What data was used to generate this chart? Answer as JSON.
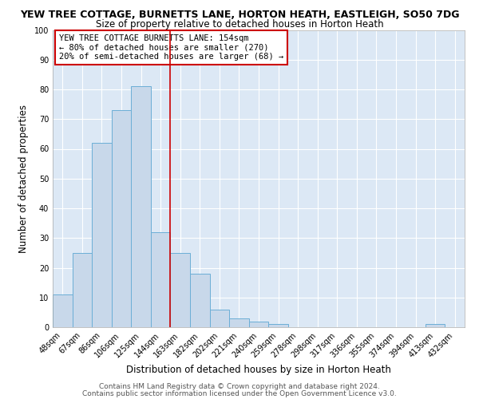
{
  "title_line1": "YEW TREE COTTAGE, BURNETTS LANE, HORTON HEATH, EASTLEIGH, SO50 7DG",
  "title_line2": "Size of property relative to detached houses in Horton Heath",
  "xlabel": "Distribution of detached houses by size in Horton Heath",
  "ylabel": "Number of detached properties",
  "bin_labels": [
    "48sqm",
    "67sqm",
    "86sqm",
    "106sqm",
    "125sqm",
    "144sqm",
    "163sqm",
    "182sqm",
    "202sqm",
    "221sqm",
    "240sqm",
    "259sqm",
    "278sqm",
    "298sqm",
    "317sqm",
    "336sqm",
    "355sqm",
    "374sqm",
    "394sqm",
    "413sqm",
    "432sqm"
  ],
  "bar_values": [
    11,
    25,
    62,
    73,
    81,
    32,
    25,
    18,
    6,
    3,
    2,
    1,
    0,
    0,
    0,
    0,
    0,
    0,
    0,
    1,
    0
  ],
  "bar_color": "#c8d8ea",
  "bar_edge_color": "#6baed6",
  "vline_x": 5.5,
  "vline_color": "#cc0000",
  "ylim": [
    0,
    100
  ],
  "yticks": [
    0,
    10,
    20,
    30,
    40,
    50,
    60,
    70,
    80,
    90,
    100
  ],
  "annotation_text": "YEW TREE COTTAGE BURNETTS LANE: 154sqm\n← 80% of detached houses are smaller (270)\n20% of semi-detached houses are larger (68) →",
  "annotation_box_color": "#ffffff",
  "annotation_box_edge": "#cc0000",
  "footer_line1": "Contains HM Land Registry data © Crown copyright and database right 2024.",
  "footer_line2": "Contains public sector information licensed under the Open Government Licence v3.0.",
  "fig_bg_color": "#ffffff",
  "plot_bg_color": "#dce8f5",
  "title_fontsize": 9,
  "subtitle_fontsize": 8.5,
  "axis_label_fontsize": 8.5,
  "tick_fontsize": 7,
  "annotation_fontsize": 7.5,
  "footer_fontsize": 6.5
}
